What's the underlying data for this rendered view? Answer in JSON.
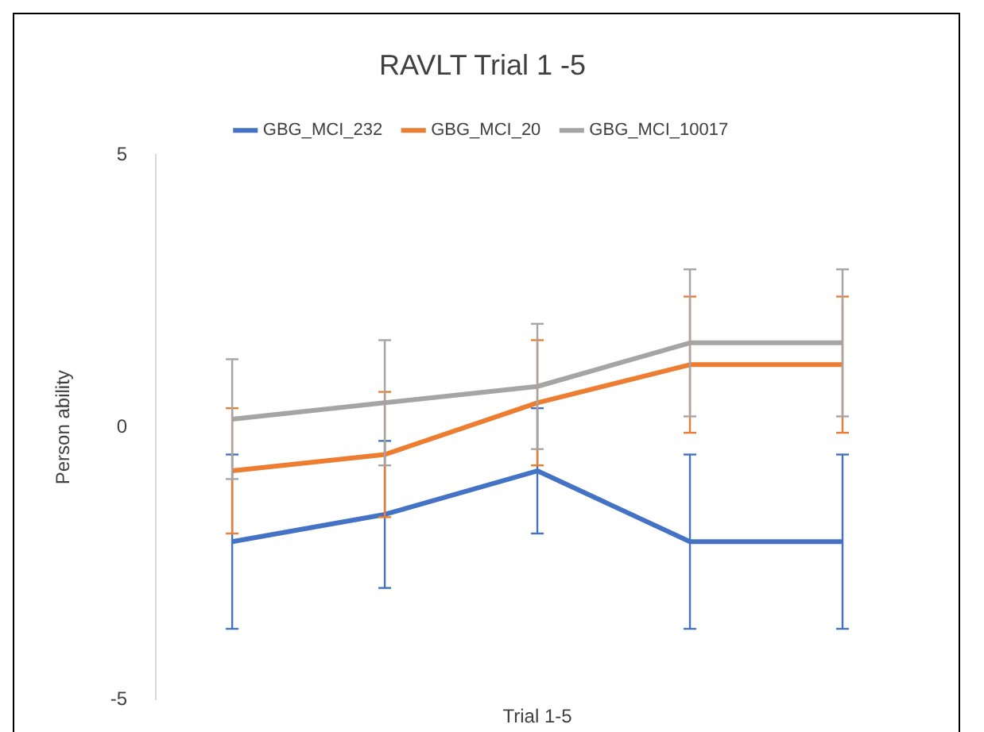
{
  "chart_data": {
    "type": "line",
    "title": "RAVLT Trial 1 -5",
    "xlabel": "Trial 1-5",
    "ylabel": "Person ability",
    "categories": [
      null,
      null,
      null,
      null,
      null
    ],
    "series": [
      {
        "name": "GBG_MCI_232",
        "color": "#4472c4",
        "values": [
          -2.1,
          -1.6,
          -0.8,
          -2.1,
          -2.1
        ],
        "errors": [
          1.6,
          1.35,
          1.15,
          1.6,
          1.6
        ]
      },
      {
        "name": "GBG_MCI_20",
        "color": "#ed7d31",
        "values": [
          -0.8,
          -0.5,
          0.45,
          1.15,
          1.15
        ],
        "errors": [
          1.15,
          1.15,
          1.15,
          1.25,
          1.25
        ]
      },
      {
        "name": "GBG_MCI_10017",
        "color": "#a5a5a5",
        "values": [
          0.15,
          0.45,
          0.75,
          1.55,
          1.55
        ],
        "errors": [
          1.1,
          1.15,
          1.15,
          1.35,
          1.35
        ]
      }
    ],
    "ylim": [
      -5,
      5
    ],
    "yticks": [
      -5,
      0,
      5
    ],
    "grid": false,
    "legend": "top",
    "marker": "none",
    "line_style": "solid"
  }
}
